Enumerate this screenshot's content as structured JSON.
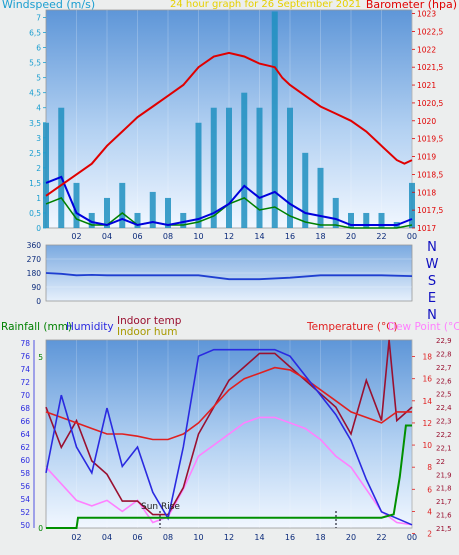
{
  "colors": {
    "wind_speed": "#1f8fbf",
    "wind_avg": "#0000dd",
    "wind_gust_fill": "#008000",
    "barometer": "#e00000",
    "direction": "#1f3fd0",
    "rainfall": "#009000",
    "humidity": "#2a2ae0",
    "indoor_temp": "#9a1030",
    "indoor_hum": "#d4c000",
    "temperature": "#e02020",
    "dew_point": "#ff80ff"
  },
  "chart_data": [
    {
      "type": "line",
      "title": "24 hour graph for  26 September 2021",
      "left_label": "Windspeed (m/s)",
      "right_label": "Barometer (hpa)",
      "x_ticks": [
        "02",
        "04",
        "06",
        "08",
        "10",
        "12",
        "14",
        "16",
        "18",
        "20",
        "22",
        "00"
      ],
      "ylim_left": [
        0,
        7.25
      ],
      "y_ticks_left": [
        "0",
        "0,5",
        "1",
        "1,5",
        "2",
        "2,5",
        "3",
        "3,5",
        "4",
        "4,5",
        "5",
        "5,5",
        "6",
        "6,5",
        "7"
      ],
      "ylim_right": [
        1017,
        1023.1
      ],
      "y_ticks_right": [
        "1017",
        "1017,5",
        "1018",
        "1018,5",
        "1019",
        "1019,5",
        "1020",
        "1020,5",
        "1021",
        "1021,5",
        "1022",
        "1022,5",
        "1023"
      ],
      "barometer": {
        "x": [
          0,
          1,
          2,
          3,
          4,
          5,
          6,
          7,
          8,
          9,
          10,
          11,
          12,
          13,
          14,
          15,
          15.5,
          16,
          17,
          18,
          19,
          20,
          21,
          22,
          23,
          23.5,
          24
        ],
        "y": [
          1017.9,
          1018.2,
          1018.5,
          1018.8,
          1019.3,
          1019.7,
          1020.1,
          1020.4,
          1020.7,
          1021.0,
          1021.5,
          1021.8,
          1021.9,
          1021.8,
          1021.6,
          1021.5,
          1021.2,
          1021.0,
          1020.7,
          1020.4,
          1020.2,
          1020.0,
          1019.7,
          1019.3,
          1018.9,
          1018.8,
          1018.9
        ]
      },
      "wind_avg": {
        "x": [
          0,
          1,
          2,
          3,
          4,
          5,
          6,
          7,
          8,
          9,
          10,
          11,
          12,
          13,
          14,
          15,
          16,
          17,
          18,
          19,
          20,
          21,
          22,
          23,
          24
        ],
        "y": [
          1.5,
          1.7,
          0.5,
          0.2,
          0.1,
          0.3,
          0.1,
          0.2,
          0.1,
          0.2,
          0.3,
          0.5,
          0.8,
          1.4,
          1.0,
          1.2,
          0.8,
          0.5,
          0.4,
          0.3,
          0.1,
          0.1,
          0.1,
          0.1,
          0.3
        ]
      },
      "wind_gust": {
        "x": [
          0,
          1,
          2,
          3,
          4,
          5,
          6,
          7,
          8,
          9,
          10,
          11,
          12,
          13,
          14,
          15,
          16,
          17,
          18,
          19,
          20,
          21,
          22,
          23,
          24
        ],
        "y": [
          3.5,
          4.0,
          1.5,
          0.5,
          1.0,
          1.5,
          0.5,
          1.2,
          1.0,
          0.5,
          3.5,
          4.0,
          4.0,
          4.5,
          4.0,
          7.2,
          4.0,
          2.5,
          2.0,
          1.0,
          0.5,
          0.5,
          0.5,
          0.2,
          1.5
        ]
      },
      "wind_run": {
        "x": [
          0,
          1,
          2,
          3,
          4,
          5,
          6,
          7,
          8,
          9,
          10,
          11,
          12,
          13,
          14,
          15,
          16,
          17,
          18,
          19,
          20,
          21,
          22,
          23,
          24
        ],
        "y": [
          0.8,
          1.0,
          0.3,
          0.1,
          0.1,
          0.5,
          0.1,
          0.2,
          0.1,
          0.1,
          0.2,
          0.4,
          0.8,
          1.0,
          0.6,
          0.7,
          0.4,
          0.2,
          0.1,
          0.1,
          0.0,
          0.0,
          0.0,
          0.0,
          0.1
        ]
      }
    },
    {
      "type": "line",
      "y_ticks": [
        "360",
        "270",
        "180",
        "90",
        "0"
      ],
      "ylim": [
        0,
        360
      ],
      "compass_labels": [
        "N",
        "W",
        "S",
        "E",
        "N"
      ],
      "direction": {
        "x": [
          0,
          1,
          2,
          3,
          4,
          6,
          8,
          10,
          12,
          14,
          16,
          18,
          20,
          22,
          24
        ],
        "y": [
          180,
          175,
          165,
          168,
          165,
          165,
          165,
          165,
          140,
          140,
          150,
          165,
          165,
          165,
          160
        ]
      }
    },
    {
      "type": "line",
      "labels": {
        "rainfall": "Rainfall (mm)",
        "humidity": "Humidity",
        "indoor_temp": "Indoor temp",
        "indoor_hum": "Indoor hum",
        "temperature": "Temperature (°C)",
        "dew_point": "Dew Point (°C)"
      },
      "annotation": "Sun Rise",
      "y_ticks_rain": [
        "0",
        "5"
      ],
      "ylim_rain": [
        0,
        5.5
      ],
      "y_ticks_hum": [
        "50",
        "52",
        "54",
        "56",
        "58",
        "60",
        "62",
        "64",
        "66",
        "68",
        "70",
        "72",
        "74",
        "76",
        "78"
      ],
      "ylim_hum": [
        49.5,
        78.5
      ],
      "y_ticks_temp": [
        "2",
        "4",
        "6",
        "8",
        "10",
        "12",
        "14",
        "16",
        "18"
      ],
      "ylim_temp": [
        2.5,
        19.5
      ],
      "y_ticks_indoor": [
        "21,5",
        "21,6",
        "21,7",
        "21,8",
        "21,9",
        "22",
        "22,1",
        "22,2",
        "22,3",
        "22,4",
        "22,5",
        "22,6",
        "22,7",
        "22,8",
        "22,9"
      ],
      "ylim_indoor": [
        21.5,
        22.9
      ],
      "humidity": {
        "x": [
          0,
          1,
          2,
          3,
          4,
          5,
          6,
          7,
          8,
          9,
          10,
          11,
          12,
          13,
          14,
          15,
          16,
          17,
          18,
          19,
          20,
          21,
          22,
          23,
          24
        ],
        "y": [
          58,
          70,
          62,
          58,
          68,
          59,
          62,
          55,
          51,
          62,
          76,
          77,
          77,
          77,
          77,
          77,
          76,
          73,
          70,
          67,
          63,
          57,
          52,
          51,
          50
        ]
      },
      "temperature": {
        "x": [
          0,
          1,
          2,
          3,
          4,
          5,
          6,
          7,
          8,
          9,
          10,
          11,
          12,
          13,
          14,
          15,
          16,
          17,
          18,
          19,
          20,
          21,
          22,
          23,
          24
        ],
        "y": [
          13.0,
          12.5,
          12.0,
          11.5,
          11.0,
          11.0,
          10.8,
          10.5,
          10.5,
          11.0,
          12.0,
          13.5,
          15.0,
          16.0,
          16.5,
          17.0,
          16.8,
          16.0,
          15.0,
          14.0,
          13.0,
          12.5,
          12.0,
          13.0,
          13.0
        ]
      },
      "dew_point": {
        "x": [
          0,
          1,
          2,
          3,
          4,
          5,
          6,
          7,
          8,
          9,
          10,
          11,
          12,
          13,
          14,
          15,
          16,
          17,
          18,
          19,
          20,
          21,
          22,
          23,
          24
        ],
        "y": [
          8.0,
          6.5,
          5.0,
          4.5,
          5.0,
          4.0,
          5.0,
          3.0,
          3.5,
          6.0,
          9.0,
          10.0,
          11.0,
          12.0,
          12.5,
          12.5,
          12.0,
          11.5,
          10.5,
          9.0,
          8.0,
          6.0,
          4.0,
          3.0,
          2.8
        ]
      },
      "indoor_temp": {
        "x": [
          0,
          1,
          2,
          3,
          4,
          5,
          6,
          7,
          8,
          9,
          10,
          11,
          12,
          13,
          14,
          15,
          16,
          17,
          18,
          19,
          20,
          21,
          22,
          22.5,
          23,
          24
        ],
        "y": [
          22.4,
          22.1,
          22.3,
          22.0,
          21.9,
          21.7,
          21.7,
          21.6,
          21.6,
          21.8,
          22.2,
          22.4,
          22.6,
          22.7,
          22.8,
          22.8,
          22.7,
          22.6,
          22.5,
          22.4,
          22.2,
          22.6,
          22.3,
          22.9,
          22.3,
          22.4
        ]
      },
      "rainfall": {
        "x": [
          0,
          2,
          2.1,
          22,
          22.8,
          23.2,
          23.6,
          24
        ],
        "y": [
          0,
          0,
          0.3,
          0.3,
          0.4,
          1.5,
          3.0,
          3.0
        ]
      }
    }
  ]
}
